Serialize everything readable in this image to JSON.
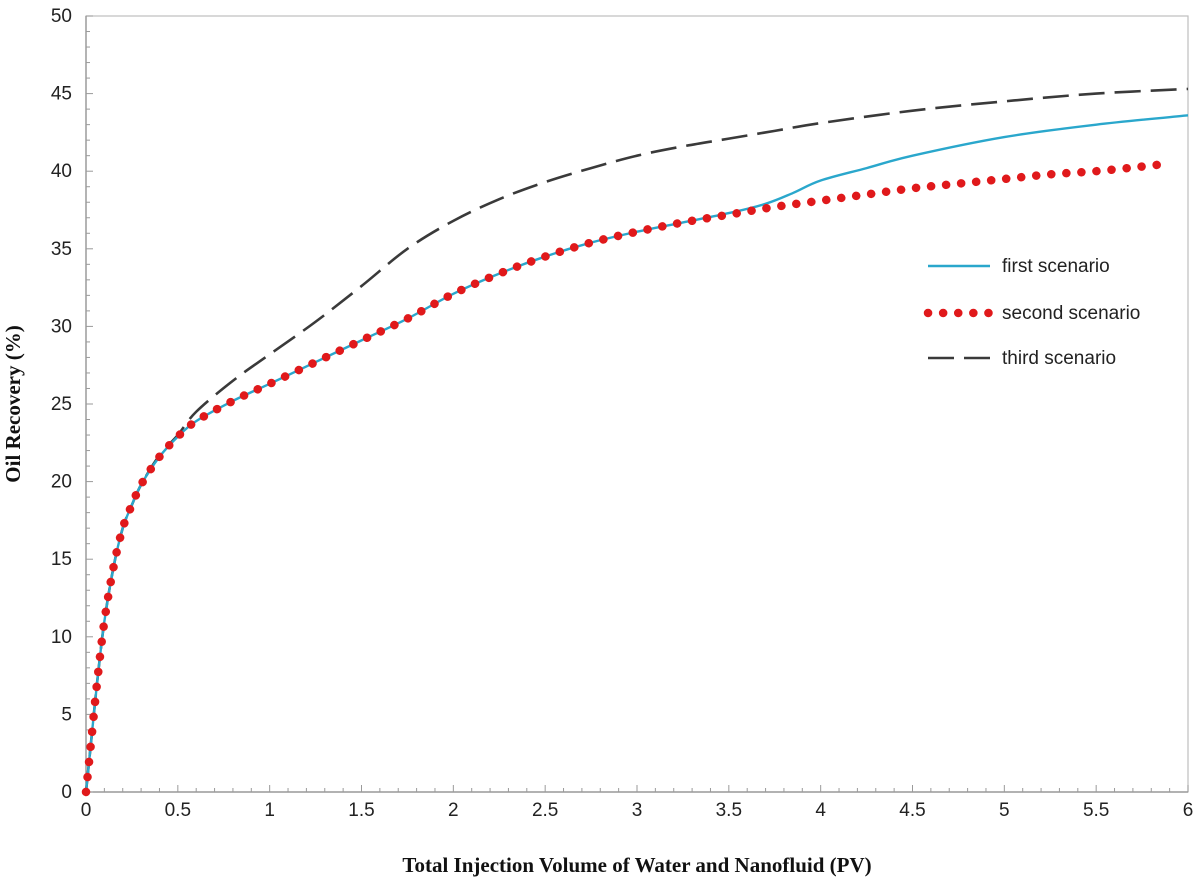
{
  "chart_data": {
    "type": "line",
    "xlabel": "Total Injection Volume of Water and Nanofluid (PV)",
    "ylabel": "Oil Recovery (%)",
    "xlim": [
      0,
      6
    ],
    "ylim": [
      0,
      50
    ],
    "x_ticks": [
      "0",
      "0.5",
      "1",
      "1.5",
      "2",
      "2.5",
      "3",
      "3.5",
      "4",
      "4.5",
      "5",
      "5.5",
      "6"
    ],
    "y_ticks": [
      "0",
      "5",
      "10",
      "15",
      "20",
      "25",
      "30",
      "35",
      "40",
      "45",
      "50"
    ],
    "grid": false,
    "legend_position": "right",
    "colors": {
      "first": "#2aa7cc",
      "second": "#e0191b",
      "third": "#3a3a3a"
    },
    "series": [
      {
        "name": "first scenario",
        "style": "solid",
        "x": [
          0,
          0.03,
          0.06,
          0.1,
          0.15,
          0.2,
          0.25,
          0.3,
          0.4,
          0.5,
          0.6,
          0.8,
          1,
          1.25,
          1.5,
          1.75,
          2,
          2.25,
          2.5,
          2.75,
          3,
          3.25,
          3.5,
          3.7,
          3.85,
          4,
          4.25,
          4.5,
          5,
          5.5,
          6
        ],
        "y": [
          0,
          3.5,
          7,
          11,
          14.5,
          17,
          18.5,
          19.8,
          21.6,
          22.9,
          23.9,
          25.2,
          26.3,
          27.7,
          29.1,
          30.5,
          32.1,
          33.4,
          34.5,
          35.4,
          36.1,
          36.7,
          37.3,
          37.9,
          38.6,
          39.4,
          40.2,
          41.0,
          42.2,
          43.0,
          43.6
        ]
      },
      {
        "name": "second scenario",
        "style": "dotted",
        "x": [
          0,
          0.03,
          0.06,
          0.1,
          0.15,
          0.2,
          0.25,
          0.3,
          0.4,
          0.5,
          0.6,
          0.8,
          1,
          1.25,
          1.5,
          1.75,
          2,
          2.25,
          2.5,
          2.75,
          3,
          3.25,
          3.5,
          3.75,
          4,
          4.25,
          4.5,
          4.75,
          5,
          5.25,
          5.5,
          5.75,
          5.9
        ],
        "y": [
          0,
          3.5,
          7,
          11,
          14.5,
          17,
          18.5,
          19.8,
          21.6,
          22.9,
          23.9,
          25.2,
          26.3,
          27.7,
          29.1,
          30.5,
          32.1,
          33.4,
          34.5,
          35.4,
          36.1,
          36.7,
          37.2,
          37.7,
          38.1,
          38.5,
          38.9,
          39.2,
          39.5,
          39.8,
          40.0,
          40.3,
          40.5
        ]
      },
      {
        "name": "third scenario",
        "style": "dashed",
        "x": [
          0,
          0.03,
          0.06,
          0.1,
          0.15,
          0.2,
          0.25,
          0.3,
          0.4,
          0.5,
          0.6,
          0.8,
          1,
          1.25,
          1.5,
          1.75,
          2,
          2.25,
          2.5,
          2.75,
          3,
          3.25,
          3.5,
          3.75,
          4,
          4.5,
          5,
          5.5,
          6
        ],
        "y": [
          0,
          3.5,
          7,
          11,
          14.5,
          17,
          18.5,
          19.8,
          21.7,
          23.0,
          24.5,
          26.5,
          28.2,
          30.3,
          32.6,
          35.0,
          36.8,
          38.2,
          39.3,
          40.2,
          41.0,
          41.6,
          42.1,
          42.6,
          43.1,
          43.9,
          44.5,
          45.0,
          45.3
        ]
      }
    ]
  }
}
